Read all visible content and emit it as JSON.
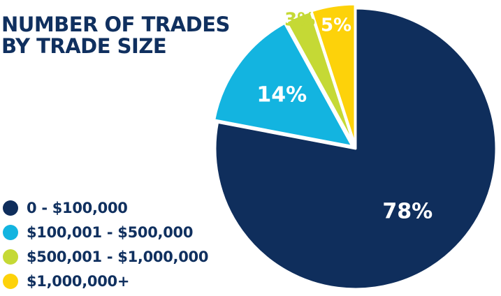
{
  "title_lines": [
    "NUMBER OF TRADES",
    "BY TRADE SIZE"
  ],
  "colors": {
    "title": "#10305f",
    "slice_1": "#0f2e5c",
    "slice_2": "#13b4e0",
    "slice_3": "#c5d935",
    "slice_4": "#fdd20a"
  },
  "chart_data": {
    "type": "pie",
    "title": "NUMBER OF TRADES BY TRADE SIZE",
    "legend_position": "bottom-left",
    "slices": [
      {
        "label": "0 - $100,000",
        "value": 78,
        "value_label": "78%",
        "color": "#0f2e5c"
      },
      {
        "label": "$100,001 - $500,000",
        "value": 14,
        "value_label": "14%",
        "color": "#13b4e0"
      },
      {
        "label": "$500,001 - $1,000,000",
        "value": 3,
        "value_label": "3%",
        "color": "#c5d935"
      },
      {
        "label": "$1,000,000+",
        "value": 5,
        "value_label": "5%",
        "color": "#fdd20a"
      }
    ]
  }
}
